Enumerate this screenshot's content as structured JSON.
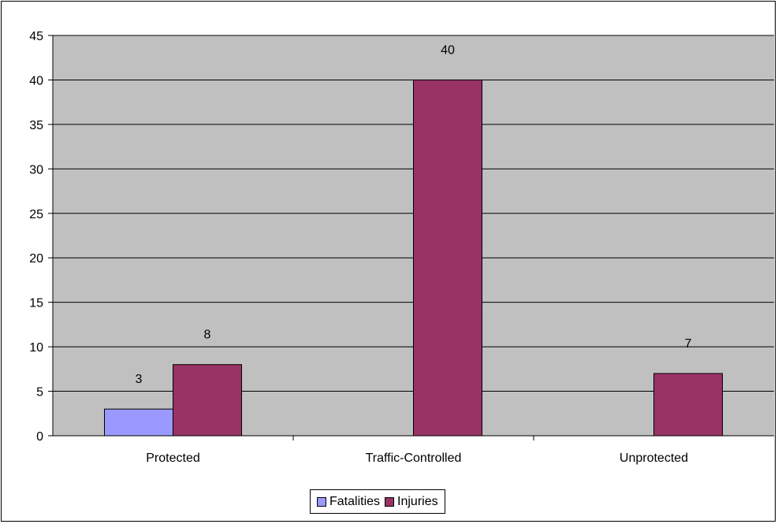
{
  "chart_data": {
    "type": "bar",
    "categories": [
      "Protected",
      "Traffic-Controlled",
      "Unprotected"
    ],
    "series": [
      {
        "name": "Fatalities",
        "values": [
          3,
          null,
          null
        ],
        "color": "#9999ff"
      },
      {
        "name": "Injuries",
        "values": [
          8,
          40,
          7
        ],
        "color": "#993366"
      }
    ],
    "title": "",
    "xlabel": "",
    "ylabel": "",
    "ylim": [
      0,
      45
    ],
    "yticks": [
      0,
      5,
      10,
      15,
      20,
      25,
      30,
      35,
      40,
      45
    ],
    "grid": true,
    "plot_background": "#c0c0c0",
    "legend_position": "bottom"
  }
}
